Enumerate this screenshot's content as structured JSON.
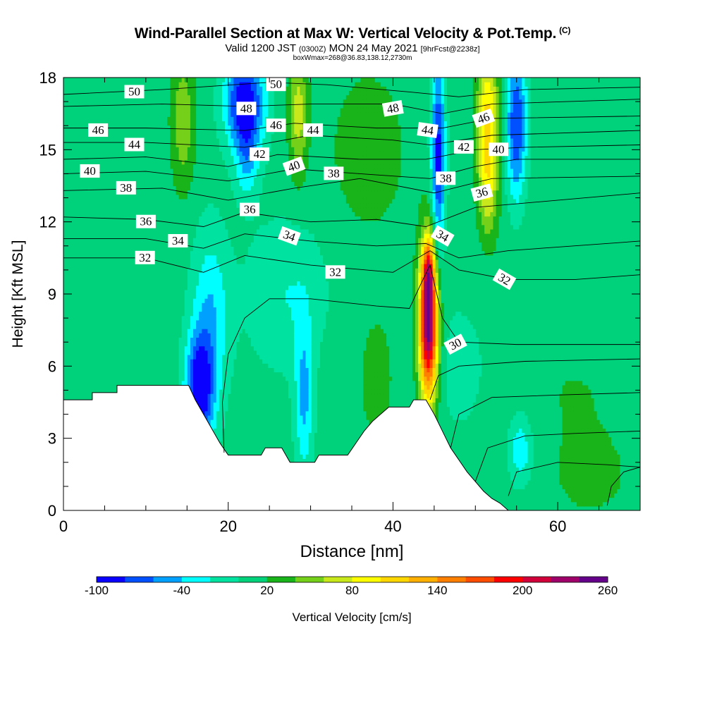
{
  "chart_data": {
    "type": "heatmap",
    "title": "Wind-Parallel Section at Max W: Vertical Velocity & Pot.Temp.",
    "title_mark": "(C)",
    "subtitle_parts": [
      "Valid 1200 JST",
      "(0300Z)",
      "MON 24 May 2021",
      "[9hrFcst@2238z]"
    ],
    "subtitle2": "boxWmax=268@36.83,138.12,2730m",
    "xlabel": "Distance [nm]",
    "ylabel": "Height [Kft MSL]",
    "xlim": [
      0,
      70
    ],
    "ylim": [
      0,
      18
    ],
    "x_ticks": [
      "0",
      "20",
      "40",
      "60"
    ],
    "y_ticks": [
      "0",
      "3",
      "6",
      "9",
      "12",
      "15",
      "18"
    ],
    "colorbar": {
      "label": "Vertical Velocity [cm/s]",
      "tick_labels": [
        "-100",
        "-40",
        "20",
        "80",
        "140",
        "200",
        "260"
      ],
      "levels": [
        -100,
        -80,
        -60,
        -40,
        -20,
        0,
        20,
        40,
        60,
        80,
        100,
        120,
        140,
        160,
        180,
        200,
        220,
        240,
        260
      ],
      "colors": [
        "#0a00ff",
        "#0050ff",
        "#00a0ff",
        "#00ffff",
        "#00e3a0",
        "#00d27c",
        "#18b41a",
        "#74d018",
        "#c8e81c",
        "#ffff00",
        "#ffd700",
        "#ffb000",
        "#ff8000",
        "#ff4d00",
        "#ff0000",
        "#d2003a",
        "#a0006a",
        "#64008a"
      ]
    },
    "background_w": 10,
    "w_features": [
      {
        "x": 44.3,
        "z": 7.8,
        "sx": 0.8,
        "sz": 2.2,
        "amp": 250
      },
      {
        "x": 44.3,
        "z": 10.0,
        "sx": 0.45,
        "sz": 0.9,
        "amp": 80
      },
      {
        "x": 16.5,
        "z": 5.0,
        "sx": 1.2,
        "sz": 1.6,
        "amp": -105
      },
      {
        "x": 17.8,
        "z": 8.0,
        "sx": 1.6,
        "sz": 2.6,
        "amp": -50
      },
      {
        "x": 29.2,
        "z": 4.6,
        "sx": 0.8,
        "sz": 2.2,
        "amp": -55
      },
      {
        "x": 27.0,
        "z": 9.0,
        "sx": 3.5,
        "sz": 2.2,
        "amp": -30
      },
      {
        "x": 45.5,
        "z": 14.8,
        "sx": 0.6,
        "sz": 2.8,
        "amp": -100
      },
      {
        "x": 22.0,
        "z": 17.0,
        "sx": 1.7,
        "sz": 1.4,
        "amp": -110
      },
      {
        "x": 22.3,
        "z": 14.6,
        "sx": 1.0,
        "sz": 1.2,
        "amp": -45
      },
      {
        "x": 55.0,
        "z": 16.0,
        "sx": 0.9,
        "sz": 2.3,
        "amp": -90
      },
      {
        "x": 51.5,
        "z": 16.5,
        "sx": 0.9,
        "sz": 1.8,
        "amp": 90
      },
      {
        "x": 51.5,
        "z": 13.5,
        "sx": 0.8,
        "sz": 1.5,
        "amp": 60
      },
      {
        "x": 28.5,
        "z": 16.5,
        "sx": 0.8,
        "sz": 1.8,
        "amp": 60
      },
      {
        "x": 14.5,
        "z": 16.2,
        "sx": 1.0,
        "sz": 2.0,
        "amp": 45
      },
      {
        "x": 37.0,
        "z": 15.0,
        "sx": 3.0,
        "sz": 2.2,
        "amp": 25
      },
      {
        "x": 55.5,
        "z": 2.5,
        "sx": 1.0,
        "sz": 1.0,
        "amp": -45
      },
      {
        "x": 48.0,
        "z": 6.0,
        "sx": 3.0,
        "sz": 2.5,
        "amp": -15
      },
      {
        "x": 64.0,
        "z": 1.5,
        "sx": 4.0,
        "sz": 1.5,
        "amp": 15
      },
      {
        "x": 62.0,
        "z": 5.0,
        "sx": 4.0,
        "sz": 1.5,
        "amp": 10
      },
      {
        "x": 38.0,
        "z": 5.5,
        "sx": 2.0,
        "sz": 2.5,
        "amp": 15
      },
      {
        "x": 60.0,
        "z": 12.0,
        "sx": 6.0,
        "sz": 2.0,
        "amp": 8
      },
      {
        "x": 5.0,
        "z": 12.0,
        "sx": 4.0,
        "sz": 2.0,
        "amp": -8
      }
    ],
    "terrain": [
      [
        0,
        4.6
      ],
      [
        3.5,
        4.6
      ],
      [
        3.5,
        4.9
      ],
      [
        6.5,
        4.9
      ],
      [
        6.5,
        5.2
      ],
      [
        15.2,
        5.2
      ],
      [
        16,
        4.6
      ],
      [
        17,
        4.0
      ],
      [
        18,
        3.4
      ],
      [
        19,
        2.8
      ],
      [
        20,
        2.3
      ],
      [
        24,
        2.3
      ],
      [
        24.5,
        2.6
      ],
      [
        26.5,
        2.6
      ],
      [
        27.5,
        2.0
      ],
      [
        30.5,
        2.0
      ],
      [
        31,
        2.3
      ],
      [
        34.5,
        2.3
      ],
      [
        35.5,
        2.8
      ],
      [
        36.5,
        3.3
      ],
      [
        37.5,
        3.7
      ],
      [
        38.5,
        4.0
      ],
      [
        39.5,
        4.3
      ],
      [
        42,
        4.3
      ],
      [
        42.5,
        4.6
      ],
      [
        44,
        4.6
      ],
      [
        45,
        4.0
      ],
      [
        46,
        3.3
      ],
      [
        47,
        2.6
      ],
      [
        48,
        2.1
      ],
      [
        49,
        1.6
      ],
      [
        50,
        1.2
      ],
      [
        51,
        0.8
      ],
      [
        52,
        0.5
      ],
      [
        53,
        0.3
      ],
      [
        54,
        0.0
      ],
      [
        70,
        0.0
      ]
    ],
    "theta_contours": [
      {
        "value": 50,
        "points": [
          [
            0,
            17.3
          ],
          [
            12,
            17.5
          ],
          [
            25,
            17.8
          ],
          [
            32,
            17.7
          ],
          [
            42,
            17.4
          ],
          [
            48,
            17.2
          ],
          [
            56,
            17.5
          ],
          [
            70,
            17.6
          ]
        ]
      },
      {
        "value": 48,
        "points": [
          [
            0,
            16.8
          ],
          [
            12,
            16.9
          ],
          [
            22,
            16.8
          ],
          [
            30,
            16.9
          ],
          [
            40,
            16.9
          ],
          [
            46,
            16.5
          ],
          [
            52,
            16.9
          ],
          [
            70,
            17.1
          ]
        ]
      },
      {
        "value": 46,
        "points": [
          [
            0,
            15.9
          ],
          [
            10,
            15.9
          ],
          [
            22,
            15.8
          ],
          [
            28,
            16.1
          ],
          [
            38,
            15.9
          ],
          [
            46,
            15.9
          ],
          [
            52,
            16.3
          ],
          [
            70,
            16.4
          ]
        ]
      },
      {
        "value": 44,
        "points": [
          [
            0,
            15.3
          ],
          [
            10,
            15.3
          ],
          [
            22,
            15.1
          ],
          [
            30,
            15.6
          ],
          [
            40,
            15.4
          ],
          [
            44.5,
            15.2
          ],
          [
            52,
            15.6
          ],
          [
            70,
            15.8
          ]
        ]
      },
      {
        "value": 42,
        "points": [
          [
            0,
            14.6
          ],
          [
            10,
            14.7
          ],
          [
            20,
            14.3
          ],
          [
            26,
            14.8
          ],
          [
            36,
            14.6
          ],
          [
            44,
            14.6
          ],
          [
            50,
            15.0
          ],
          [
            56,
            15.1
          ],
          [
            70,
            15.2
          ]
        ]
      },
      {
        "value": 40,
        "points": [
          [
            0,
            14.0
          ],
          [
            10,
            14.1
          ],
          [
            20,
            13.7
          ],
          [
            28,
            14.2
          ],
          [
            36,
            14.0
          ],
          [
            44.5,
            13.8
          ],
          [
            50,
            14.3
          ],
          [
            55,
            14.6
          ],
          [
            70,
            14.6
          ]
        ]
      },
      {
        "value": 38,
        "points": [
          [
            0,
            13.3
          ],
          [
            12,
            13.4
          ],
          [
            20,
            12.9
          ],
          [
            28,
            13.4
          ],
          [
            36,
            13.8
          ],
          [
            45,
            13.2
          ],
          [
            52,
            13.8
          ],
          [
            70,
            13.9
          ]
        ]
      },
      {
        "value": 36,
        "points": [
          [
            0,
            12.2
          ],
          [
            10,
            12.1
          ],
          [
            17,
            11.8
          ],
          [
            22,
            12.4
          ],
          [
            30,
            12.0
          ],
          [
            38,
            12.1
          ],
          [
            44,
            11.8
          ],
          [
            50,
            12.6
          ],
          [
            70,
            13.2
          ]
        ]
      },
      {
        "value": 34,
        "points": [
          [
            0,
            11.3
          ],
          [
            10,
            11.3
          ],
          [
            17,
            10.9
          ],
          [
            22,
            11.5
          ],
          [
            30,
            11.2
          ],
          [
            38,
            11.0
          ],
          [
            44,
            11.1
          ],
          [
            48,
            10.5
          ],
          [
            54,
            10.8
          ],
          [
            70,
            11.2
          ]
        ]
      },
      {
        "value": 32,
        "points": [
          [
            0,
            10.5
          ],
          [
            10,
            10.5
          ],
          [
            17,
            9.9
          ],
          [
            22,
            10.6
          ],
          [
            30,
            10.2
          ],
          [
            40,
            9.9
          ],
          [
            44.5,
            10.8
          ],
          [
            48,
            10.0
          ],
          [
            54,
            9.6
          ],
          [
            62,
            9.6
          ],
          [
            70,
            9.8
          ]
        ]
      },
      {
        "value": 30,
        "points": [
          [
            19.5,
            2.4
          ],
          [
            19.3,
            4.5
          ],
          [
            20,
            6.5
          ],
          [
            22,
            8.0
          ],
          [
            25,
            8.8
          ],
          [
            30,
            8.8
          ],
          [
            38,
            8.5
          ],
          [
            42,
            8.4
          ],
          [
            43.5,
            9.5
          ],
          [
            44.5,
            10.2
          ],
          [
            46,
            8.0
          ],
          [
            48,
            7.0
          ],
          [
            55,
            6.9
          ],
          [
            70,
            6.9
          ]
        ]
      },
      {
        "value": 29,
        "points": [
          [
            44.5,
            4.6
          ],
          [
            45.5,
            5.6
          ],
          [
            48,
            6.0
          ],
          [
            56,
            6.2
          ],
          [
            70,
            6.3
          ]
        ]
      },
      {
        "value": 28,
        "points": [
          [
            47,
            2.6
          ],
          [
            48,
            4.0
          ],
          [
            52,
            4.7
          ],
          [
            60,
            4.8
          ],
          [
            70,
            4.9
          ]
        ]
      },
      {
        "value": 27,
        "points": [
          [
            50,
            1.2
          ],
          [
            51.5,
            2.6
          ],
          [
            56,
            3.1
          ],
          [
            62,
            3.2
          ],
          [
            70,
            3.3
          ]
        ]
      },
      {
        "value": 26,
        "points": [
          [
            54,
            0.6
          ],
          [
            55,
            1.6
          ],
          [
            60,
            2.0
          ],
          [
            66,
            1.9
          ],
          [
            70,
            1.8
          ]
        ]
      },
      {
        "value": 25,
        "points": [
          [
            66,
            0.2
          ],
          [
            66.5,
            1.0
          ],
          [
            68,
            1.6
          ],
          [
            70,
            1.8
          ]
        ]
      }
    ],
    "theta_labels": [
      {
        "text": "50",
        "x": 8.6,
        "z": 17.4,
        "angle": 0
      },
      {
        "text": "48",
        "x": 22.2,
        "z": 16.7,
        "angle": 0
      },
      {
        "text": "50",
        "x": 25.8,
        "z": 17.7,
        "angle": 0
      },
      {
        "text": "48",
        "x": 40.0,
        "z": 16.7,
        "angle": -10
      },
      {
        "text": "46",
        "x": 4.2,
        "z": 15.8,
        "angle": 0
      },
      {
        "text": "46",
        "x": 25.8,
        "z": 16.0,
        "angle": 0
      },
      {
        "text": "46",
        "x": 51.0,
        "z": 16.3,
        "angle": -20
      },
      {
        "text": "44",
        "x": 8.6,
        "z": 15.2,
        "angle": 0
      },
      {
        "text": "44",
        "x": 30.3,
        "z": 15.8,
        "angle": 0
      },
      {
        "text": "44",
        "x": 44.2,
        "z": 15.8,
        "angle": 8
      },
      {
        "text": "42",
        "x": 23.8,
        "z": 14.8,
        "angle": 0
      },
      {
        "text": "42",
        "x": 48.6,
        "z": 15.1,
        "angle": 0
      },
      {
        "text": "40",
        "x": 3.2,
        "z": 14.1,
        "angle": 0
      },
      {
        "text": "40",
        "x": 28.0,
        "z": 14.3,
        "angle": -20
      },
      {
        "text": "40",
        "x": 52.8,
        "z": 15.0,
        "angle": 0
      },
      {
        "text": "38",
        "x": 7.6,
        "z": 13.4,
        "angle": 0
      },
      {
        "text": "38",
        "x": 32.8,
        "z": 14.0,
        "angle": 0
      },
      {
        "text": "38",
        "x": 46.4,
        "z": 13.8,
        "angle": 0
      },
      {
        "text": "36",
        "x": 22.6,
        "z": 12.5,
        "angle": 0
      },
      {
        "text": "36",
        "x": 10.0,
        "z": 12.0,
        "angle": 0
      },
      {
        "text": "36",
        "x": 50.8,
        "z": 13.2,
        "angle": -15
      },
      {
        "text": "34",
        "x": 13.9,
        "z": 11.2,
        "angle": 0
      },
      {
        "text": "34",
        "x": 27.4,
        "z": 11.4,
        "angle": 20
      },
      {
        "text": "34",
        "x": 46.0,
        "z": 11.4,
        "angle": 30
      },
      {
        "text": "32",
        "x": 9.9,
        "z": 10.5,
        "angle": 0
      },
      {
        "text": "32",
        "x": 33.0,
        "z": 9.9,
        "angle": 0
      },
      {
        "text": "32",
        "x": 53.5,
        "z": 9.6,
        "angle": 30
      },
      {
        "text": "30",
        "x": 47.6,
        "z": 6.9,
        "angle": -28
      }
    ]
  }
}
